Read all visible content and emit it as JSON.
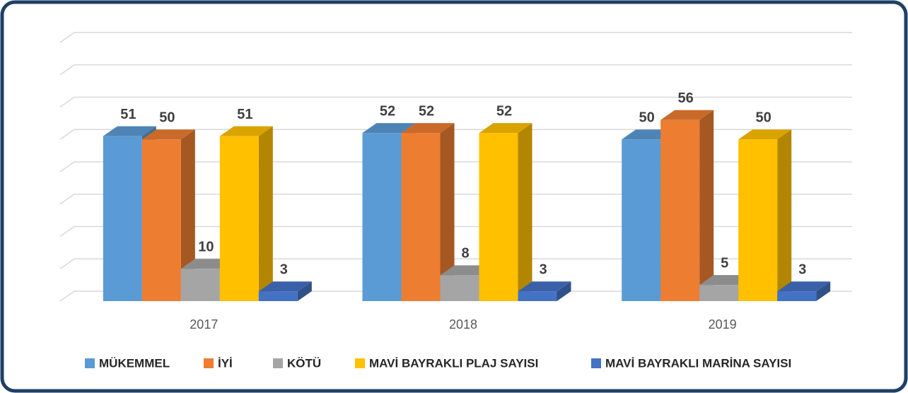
{
  "chart_data": {
    "type": "bar3d",
    "categories": [
      "2017",
      "2018",
      "2019"
    ],
    "series": [
      {
        "name": "MÜKEMMEL",
        "color": "#5b9bd5",
        "values": [
          51,
          52,
          50
        ]
      },
      {
        "name": "İYİ",
        "color": "#ed7d31",
        "values": [
          50,
          52,
          56
        ]
      },
      {
        "name": "KÖTÜ",
        "color": "#a5a5a5",
        "values": [
          10,
          8,
          5
        ]
      },
      {
        "name": "MAVİ BAYRAKLI PLAJ SAYISI",
        "color": "#ffc000",
        "values": [
          51,
          52,
          50
        ]
      },
      {
        "name": "MAVİ BAYRAKLI MARİNA SAYISI",
        "color": "#4472c4",
        "values": [
          3,
          3,
          3
        ]
      }
    ],
    "ylim": [
      0,
      80
    ],
    "yticks": [
      0,
      10,
      20,
      30,
      40,
      50,
      60,
      70,
      80
    ],
    "grid": true,
    "legend": "bottom"
  }
}
